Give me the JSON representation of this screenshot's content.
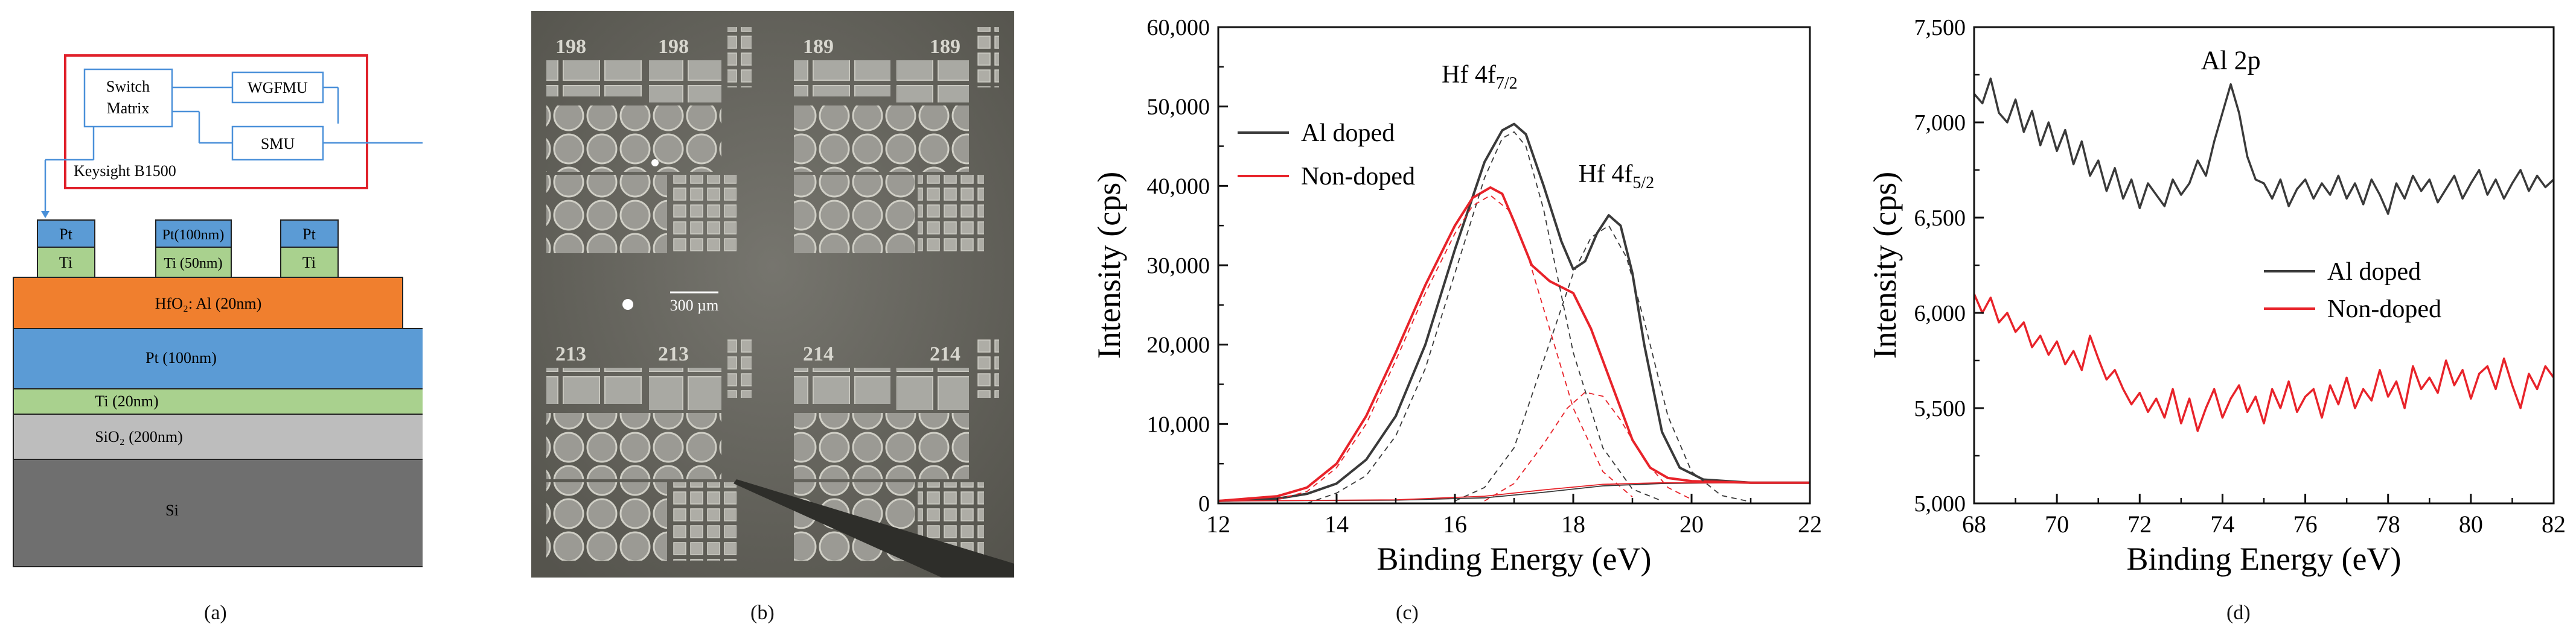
{
  "figure": {
    "panel_labels": [
      "(a)",
      "(b)",
      "(c)",
      "(d)"
    ]
  },
  "panel_a": {
    "instrument": {
      "name": "Keysight B1500",
      "switch_matrix": [
        "Switch",
        "Matrix"
      ],
      "wgfmu": "WGFMU",
      "smu": "SMU"
    },
    "top_electrodes": [
      {
        "top": "Pt",
        "bottom": "Ti"
      },
      {
        "top": "Pt(100nm)",
        "bottom": "Ti (50nm)"
      },
      {
        "top": "Pt",
        "bottom": "Ti"
      }
    ],
    "layers": [
      {
        "label": "HfO₂: Al (20nm)",
        "color": "#f07f2e"
      },
      {
        "label": "Pt (100nm)",
        "color": "#5b9bd5"
      },
      {
        "label": "Ti (20nm)",
        "color": "#a9d18e"
      },
      {
        "label": "SiO₂ (200nm)",
        "color": "#bdbdbd"
      },
      {
        "label": "Si",
        "color": "#6f6f6f"
      }
    ],
    "colors": {
      "frame": "#e0202a",
      "wire": "#4a90d9",
      "pt": "#5b9bd5",
      "ti": "#a9d18e"
    }
  },
  "panel_b": {
    "device_ids": [
      "198",
      "198",
      "189",
      "189",
      "213",
      "213",
      "214",
      "214"
    ],
    "scale_bar": "300 µm"
  },
  "chart_data": [
    {
      "id": "c",
      "type": "line",
      "xlabel": "Binding Energy (eV)",
      "ylabel": "Intensity (cps)",
      "xlim": [
        12,
        22
      ],
      "ylim": [
        0,
        60000
      ],
      "xticks": [
        12,
        14,
        16,
        18,
        20,
        22
      ],
      "xtick_labels": [
        "12",
        "14",
        "16",
        "18",
        "20",
        "22"
      ],
      "yticks": [
        0,
        10000,
        20000,
        30000,
        40000,
        50000,
        60000
      ],
      "ytick_labels": [
        "0",
        "10,000",
        "20,000",
        "30,000",
        "40,000",
        "50,000",
        "60,000"
      ],
      "legend": [
        {
          "name": "Al doped",
          "color": "#3a3a3a"
        },
        {
          "name": "Non-doped",
          "color": "#e8232a"
        }
      ],
      "annotations": {
        "peak1": {
          "base": "Hf 4f",
          "sub": "7/2",
          "x": 17.0,
          "y": 53000
        },
        "peak2": {
          "base": "Hf 4f",
          "sub": "5/2",
          "x": 18.7,
          "y": 40500
        }
      },
      "series": [
        {
          "name": "Al doped",
          "color": "#3a3a3a",
          "width": 4,
          "x": [
            12,
            13,
            13.5,
            14,
            14.5,
            15,
            15.5,
            16,
            16.5,
            16.8,
            17.0,
            17.2,
            17.5,
            17.8,
            18.0,
            18.2,
            18.4,
            18.6,
            18.8,
            19.0,
            19.2,
            19.5,
            19.8,
            20.2,
            21,
            22
          ],
          "y": [
            300,
            600,
            1200,
            2500,
            5500,
            11000,
            20000,
            32000,
            43000,
            47000,
            47800,
            46500,
            40000,
            33000,
            29500,
            30500,
            34000,
            36300,
            35000,
            29000,
            20000,
            9000,
            4500,
            3000,
            2600,
            2600
          ]
        },
        {
          "name": "Non-doped",
          "color": "#e8232a",
          "width": 4,
          "x": [
            12,
            13,
            13.5,
            14,
            14.5,
            15,
            15.5,
            16,
            16.3,
            16.6,
            16.8,
            17.0,
            17.3,
            17.6,
            18.0,
            18.3,
            18.6,
            19.0,
            19.3,
            19.6,
            20.0,
            21,
            22
          ],
          "y": [
            300,
            900,
            2000,
            5000,
            11000,
            19000,
            27500,
            35000,
            38500,
            39800,
            39000,
            35500,
            30000,
            28000,
            26500,
            22000,
            16000,
            8000,
            4500,
            3200,
            2800,
            2600,
            2600
          ]
        },
        {
          "name": "Al doped fit 4f7/2",
          "color": "#3a3a3a",
          "width": 1.8,
          "dash": "9 7",
          "x": [
            13.5,
            14,
            14.5,
            15,
            15.5,
            16,
            16.5,
            16.8,
            17.0,
            17.2,
            17.5,
            18.0,
            18.5,
            19.0,
            19.5
          ],
          "y": [
            0,
            1300,
            3500,
            8500,
            17000,
            29000,
            41000,
            46000,
            46800,
            45000,
            37000,
            19000,
            7000,
            1800,
            300
          ]
        },
        {
          "name": "Al doped fit 4f5/2",
          "color": "#3a3a3a",
          "width": 1.8,
          "dash": "9 7",
          "x": [
            16.0,
            16.5,
            17.0,
            17.5,
            18.0,
            18.3,
            18.6,
            18.9,
            19.2,
            19.6,
            20.0,
            20.5,
            21.0
          ],
          "y": [
            300,
            2000,
            7000,
            18000,
            29000,
            33500,
            35000,
            31000,
            23000,
            11000,
            4000,
            1000,
            200
          ]
        },
        {
          "name": "Non-doped fit 4f7/2",
          "color": "#e8232a",
          "width": 1.8,
          "dash": "9 7",
          "x": [
            13,
            13.5,
            14,
            14.5,
            15,
            15.5,
            16,
            16.3,
            16.6,
            16.9,
            17.2,
            17.6,
            18.0,
            18.5,
            19.0
          ],
          "y": [
            500,
            1500,
            4500,
            10000,
            18000,
            26500,
            34000,
            37500,
            38800,
            37000,
            32000,
            22000,
            12000,
            4000,
            800
          ]
        },
        {
          "name": "Non-doped fit 4f5/2",
          "color": "#e8232a",
          "width": 1.8,
          "dash": "9 7",
          "x": [
            16.5,
            17.0,
            17.5,
            17.9,
            18.2,
            18.5,
            18.8,
            19.2,
            19.6,
            20.0
          ],
          "y": [
            300,
            2500,
            7500,
            12000,
            14000,
            13500,
            10500,
            5500,
            2000,
            500
          ]
        },
        {
          "name": "Al doped background",
          "color": "#3a3a3a",
          "width": 1.8,
          "x": [
            12,
            15,
            16.5,
            17.5,
            18.5,
            19.5,
            20.5,
            22
          ],
          "y": [
            300,
            400,
            700,
            1400,
            2200,
            2500,
            2600,
            2600
          ]
        },
        {
          "name": "Non-doped background",
          "color": "#e8232a",
          "width": 1.8,
          "x": [
            12,
            15,
            16.5,
            17.5,
            18.5,
            19.5,
            20.5,
            22
          ],
          "y": [
            300,
            450,
            900,
            1700,
            2400,
            2600,
            2600,
            2600
          ]
        }
      ]
    },
    {
      "id": "d",
      "type": "line",
      "xlabel": "Binding Energy (eV)",
      "ylabel": "Intensity (cps)",
      "xlim": [
        68,
        82
      ],
      "ylim": [
        5000,
        7500
      ],
      "xticks": [
        68,
        70,
        72,
        74,
        76,
        78,
        80,
        82
      ],
      "xtick_labels": [
        "68",
        "70",
        "72",
        "74",
        "76",
        "78",
        "80",
        "82"
      ],
      "yticks": [
        5000,
        5500,
        6000,
        6500,
        7000,
        7500
      ],
      "ytick_labels": [
        "5,000",
        "5,500",
        "6,000",
        "6,500",
        "7,000",
        "7,500"
      ],
      "legend": [
        {
          "name": "Al doped",
          "color": "#3a3a3a"
        },
        {
          "name": "Non-doped",
          "color": "#e8232a"
        }
      ],
      "annotations": {
        "peak": {
          "text": "Al 2p",
          "x": 74.2,
          "y": 7280
        }
      },
      "series": [
        {
          "name": "Al doped",
          "color": "#3a3a3a",
          "width": 3.5,
          "x": [
            68.0,
            68.2,
            68.4,
            68.6,
            68.8,
            69.0,
            69.2,
            69.4,
            69.6,
            69.8,
            70.0,
            70.2,
            70.4,
            70.6,
            70.8,
            71.0,
            71.2,
            71.4,
            71.6,
            71.8,
            72.0,
            72.2,
            72.4,
            72.6,
            72.8,
            73.0,
            73.2,
            73.4,
            73.6,
            73.8,
            74.0,
            74.2,
            74.4,
            74.6,
            74.8,
            75.0,
            75.2,
            75.4,
            75.6,
            75.8,
            76.0,
            76.2,
            76.4,
            76.6,
            76.8,
            77.0,
            77.2,
            77.4,
            77.6,
            77.8,
            78.0,
            78.2,
            78.4,
            78.6,
            78.8,
            79.0,
            79.2,
            79.4,
            79.6,
            79.8,
            80.0,
            80.2,
            80.4,
            80.6,
            80.8,
            81.0,
            81.2,
            81.4,
            81.6,
            81.8,
            82.0
          ],
          "y": [
            7150,
            7100,
            7230,
            7050,
            7000,
            7120,
            6950,
            7060,
            6880,
            7000,
            6850,
            6960,
            6780,
            6900,
            6720,
            6800,
            6640,
            6760,
            6600,
            6700,
            6550,
            6680,
            6620,
            6560,
            6700,
            6620,
            6680,
            6800,
            6720,
            6900,
            7050,
            7200,
            7050,
            6820,
            6700,
            6680,
            6600,
            6700,
            6560,
            6650,
            6700,
            6600,
            6680,
            6620,
            6720,
            6600,
            6680,
            6570,
            6700,
            6620,
            6520,
            6680,
            6600,
            6720,
            6640,
            6700,
            6580,
            6650,
            6720,
            6600,
            6680,
            6750,
            6620,
            6700,
            6600,
            6680,
            6750,
            6640,
            6720,
            6660,
            6700
          ]
        },
        {
          "name": "Non-doped",
          "color": "#e8232a",
          "width": 3.5,
          "x": [
            68.0,
            68.2,
            68.4,
            68.6,
            68.8,
            69.0,
            69.2,
            69.4,
            69.6,
            69.8,
            70.0,
            70.2,
            70.4,
            70.6,
            70.8,
            71.0,
            71.2,
            71.4,
            71.6,
            71.8,
            72.0,
            72.2,
            72.4,
            72.6,
            72.8,
            73.0,
            73.2,
            73.4,
            73.6,
            73.8,
            74.0,
            74.2,
            74.4,
            74.6,
            74.8,
            75.0,
            75.2,
            75.4,
            75.6,
            75.8,
            76.0,
            76.2,
            76.4,
            76.6,
            76.8,
            77.0,
            77.2,
            77.4,
            77.6,
            77.8,
            78.0,
            78.2,
            78.4,
            78.6,
            78.8,
            79.0,
            79.2,
            79.4,
            79.6,
            79.8,
            80.0,
            80.2,
            80.4,
            80.6,
            80.8,
            81.0,
            81.2,
            81.4,
            81.6,
            81.8,
            82.0
          ],
          "y": [
            6100,
            6000,
            6080,
            5950,
            6000,
            5900,
            5950,
            5820,
            5880,
            5780,
            5850,
            5730,
            5800,
            5700,
            5880,
            5760,
            5650,
            5700,
            5600,
            5520,
            5580,
            5480,
            5550,
            5450,
            5600,
            5420,
            5550,
            5380,
            5500,
            5600,
            5450,
            5550,
            5620,
            5480,
            5560,
            5420,
            5600,
            5500,
            5640,
            5480,
            5560,
            5600,
            5450,
            5620,
            5520,
            5660,
            5500,
            5600,
            5540,
            5700,
            5560,
            5640,
            5500,
            5720,
            5600,
            5660,
            5580,
            5750,
            5620,
            5700,
            5550,
            5680,
            5720,
            5600,
            5760,
            5620,
            5500,
            5680,
            5600,
            5720,
            5660
          ]
        }
      ]
    }
  ]
}
